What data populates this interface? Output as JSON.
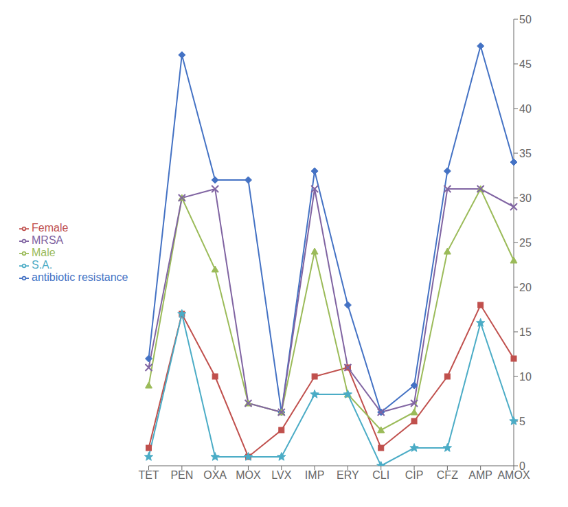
{
  "chart_data": {
    "type": "line",
    "categories": [
      "TET",
      "PEN",
      "OXA",
      "MOX",
      "LVX",
      "IMP",
      "ERY",
      "CLI",
      "CIP",
      "CFZ",
      "AMP",
      "AMOX"
    ],
    "series": [
      {
        "name": "antibiotic resistance",
        "color": "#4472C4",
        "marker": "diamond",
        "values": [
          12,
          46,
          32,
          32,
          6,
          33,
          18,
          6,
          9,
          33,
          47,
          34
        ]
      },
      {
        "name": "Female",
        "color": "#C0504D",
        "marker": "square",
        "values": [
          2,
          17,
          10,
          1,
          4,
          10,
          11,
          2,
          5,
          10,
          18,
          12
        ]
      },
      {
        "name": "Male",
        "color": "#9BBB59",
        "marker": "triangle",
        "values": [
          9,
          30,
          22,
          7,
          6,
          24,
          8,
          4,
          6,
          24,
          31,
          23
        ]
      },
      {
        "name": "MRSA",
        "color": "#8064A2",
        "marker": "x",
        "values": [
          11,
          30,
          31,
          7,
          6,
          31,
          11,
          6,
          7,
          31,
          31,
          29
        ]
      },
      {
        "name": "S.A.",
        "color": "#4BACC6",
        "marker": "star",
        "values": [
          1,
          17,
          1,
          1,
          1,
          8,
          8,
          0,
          2,
          2,
          16,
          5
        ]
      }
    ],
    "ylim": [
      0,
      50
    ],
    "yticks": [
      0,
      5,
      10,
      15,
      20,
      25,
      30,
      35,
      40,
      45,
      50
    ],
    "grid": false,
    "legend": "left"
  }
}
